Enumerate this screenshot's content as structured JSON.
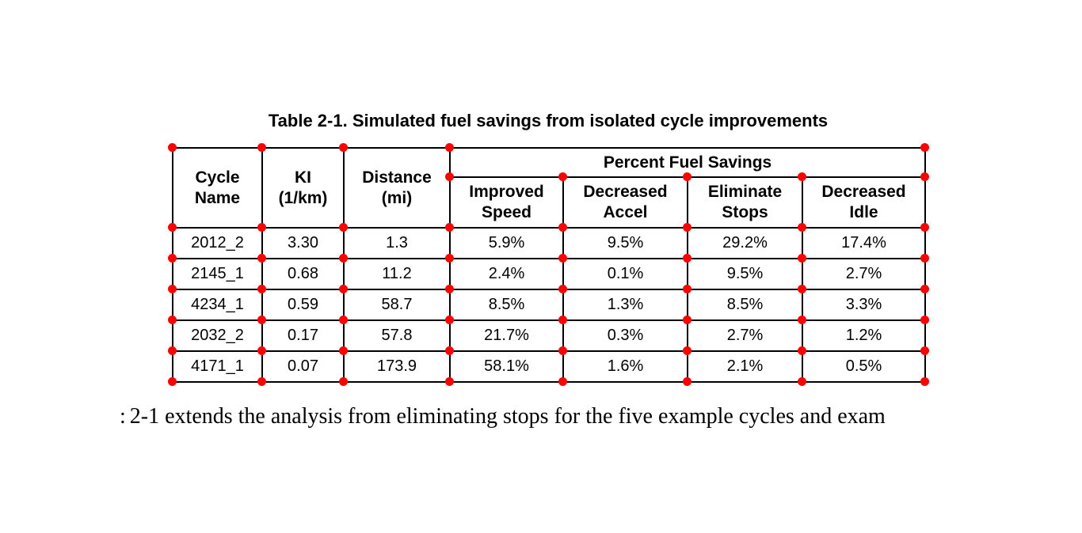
{
  "caption": "Table 2-1. Simulated fuel savings from isolated cycle improvements",
  "table": {
    "headers": {
      "cycle_name": "Cycle\nName",
      "ki": "KI\n(1/km)",
      "distance": "Distance\n(mi)",
      "group": "Percent Fuel Savings",
      "sub": [
        "Improved\nSpeed",
        "Decreased\nAccel",
        "Eliminate\nStops",
        "Decreased\nIdle"
      ]
    },
    "rows": [
      [
        "2012_2",
        "3.30",
        "1.3",
        "5.9%",
        "9.5%",
        "29.2%",
        "17.4%"
      ],
      [
        "2145_1",
        "0.68",
        "11.2",
        "2.4%",
        "0.1%",
        "9.5%",
        "2.7%"
      ],
      [
        "4234_1",
        "0.59",
        "58.7",
        "8.5%",
        "1.3%",
        "8.5%",
        "3.3%"
      ],
      [
        "2032_2",
        "0.17",
        "57.8",
        "21.7%",
        "0.3%",
        "2.7%",
        "1.2%"
      ],
      [
        "4171_1",
        "0.07",
        "173.9",
        "58.1%",
        "1.6%",
        "2.1%",
        "0.5%"
      ]
    ]
  },
  "body": {
    "left_fragment": ":",
    "text": "2-1 extends the analysis from eliminating stops for the five example cycles and exam"
  },
  "annotation": {
    "marker_color": "#ff0000"
  }
}
